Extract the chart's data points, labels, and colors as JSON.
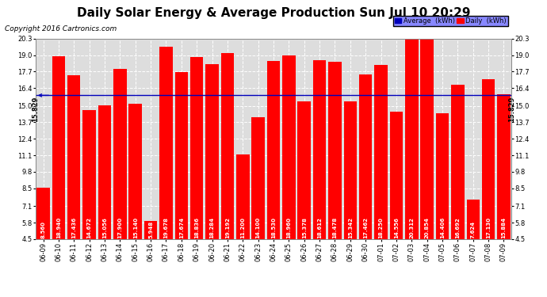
{
  "title": "Daily Solar Energy & Average Production Sun Jul 10 20:29",
  "copyright": "Copyright 2016 Cartronics.com",
  "categories": [
    "06-09",
    "06-10",
    "06-11",
    "06-12",
    "06-13",
    "06-14",
    "06-15",
    "06-16",
    "06-17",
    "06-18",
    "06-19",
    "06-20",
    "06-21",
    "06-22",
    "06-23",
    "06-24",
    "06-25",
    "06-26",
    "06-27",
    "06-28",
    "06-29",
    "06-30",
    "07-01",
    "07-02",
    "07-03",
    "07-04",
    "07-05",
    "07-06",
    "07-07",
    "07-08",
    "07-09"
  ],
  "values": [
    8.56,
    18.94,
    17.436,
    14.672,
    15.056,
    17.9,
    15.14,
    5.948,
    19.678,
    17.674,
    18.836,
    18.284,
    19.192,
    11.2,
    14.1,
    18.53,
    18.96,
    15.378,
    18.612,
    18.478,
    15.342,
    17.462,
    18.25,
    14.556,
    20.312,
    20.854,
    14.406,
    16.692,
    7.624,
    17.13,
    15.884
  ],
  "average": 15.829,
  "bar_color": "#ff0000",
  "average_line_color": "#0000bb",
  "background_color": "#ffffff",
  "plot_bg_color": "#dddddd",
  "grid_color": "#ffffff",
  "ymin": 4.5,
  "ymax": 20.3,
  "yticks": [
    4.5,
    5.8,
    7.1,
    8.5,
    9.8,
    11.1,
    12.4,
    13.7,
    15.0,
    16.4,
    17.7,
    19.0,
    20.3
  ],
  "title_fontsize": 11,
  "copyright_fontsize": 6.5,
  "tick_label_fontsize": 6,
  "value_fontsize": 5,
  "legend_avg_color": "#0000bb",
  "legend_daily_color": "#ff0000"
}
